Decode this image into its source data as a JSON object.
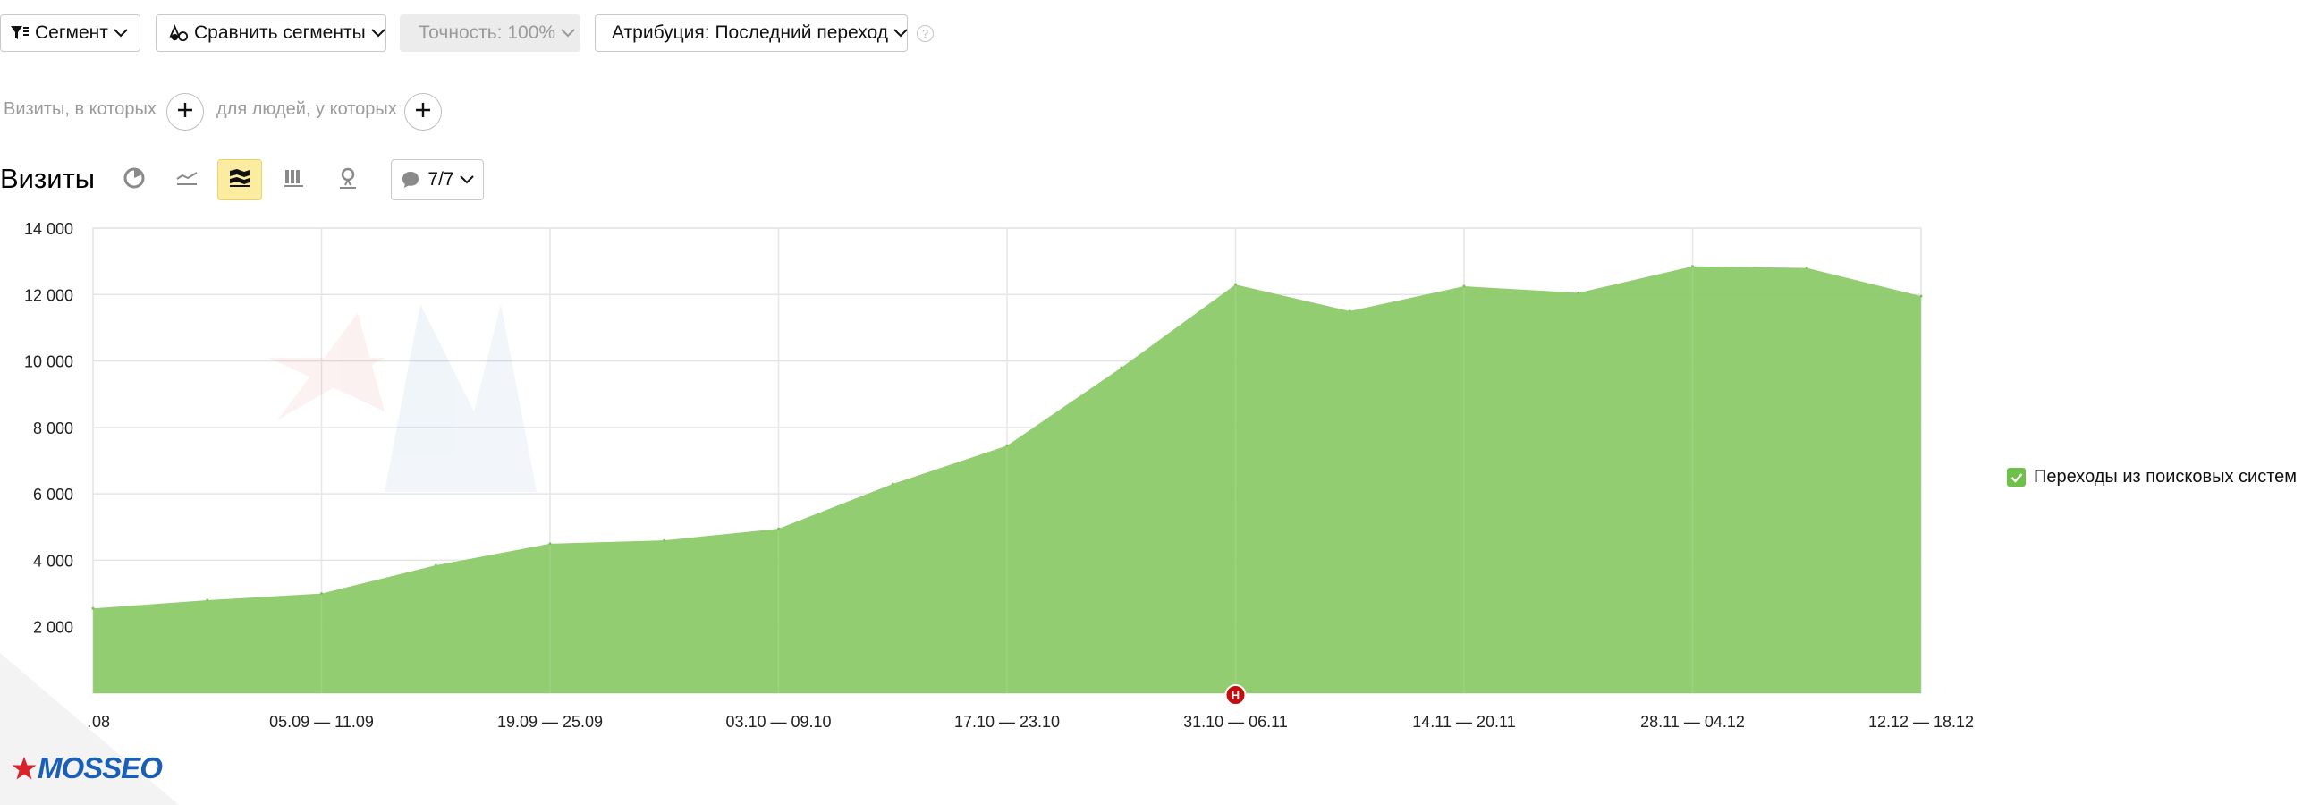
{
  "toolbar": {
    "segment_label": "Сегмент",
    "compare_label": "Сравнить сегменты",
    "accuracy_label": "Точность: 100%",
    "attribution_label": "Атрибуция: Последний переход",
    "help_label": "?"
  },
  "segment_row": {
    "visits_label": "Визиты, в которых",
    "people_label": "для людей, у которых"
  },
  "report": {
    "title": "Визиты",
    "annotations_label": "7/7"
  },
  "legend": {
    "label": "Переходы из поисковых систем",
    "color": "#6fc04a"
  },
  "marker": {
    "label": "Н"
  },
  "logo": {
    "text": "MOSSEO"
  },
  "chart_data": {
    "type": "area",
    "ylim": [
      0,
      14000
    ],
    "y_ticks": [
      2000,
      4000,
      6000,
      8000,
      10000,
      12000,
      14000
    ],
    "y_tick_labels": [
      "2 000",
      "4 000",
      "6 000",
      "8 000",
      "10 000",
      "12 000",
      "14 000"
    ],
    "x_tick_labels": [
      "…08",
      "05.09 — 11.09",
      "19.09 — 25.09",
      "03.10 — 09.10",
      "17.10 — 23.10",
      "31.10 — 06.11",
      "14.11 — 20.11",
      "28.11 — 04.12",
      "12.12 — 18.12"
    ],
    "x_tick_index": [
      0,
      2,
      4,
      6,
      8,
      10,
      12,
      14,
      16
    ],
    "series": [
      {
        "name": "Переходы из поисковых систем",
        "color": "#8dca6a",
        "values": [
          2550,
          2800,
          3000,
          3850,
          4500,
          4600,
          4950,
          6300,
          7450,
          9800,
          12300,
          11500,
          12250,
          12050,
          12850,
          12800,
          11950
        ]
      }
    ],
    "grid": true,
    "legend_position": "right"
  }
}
